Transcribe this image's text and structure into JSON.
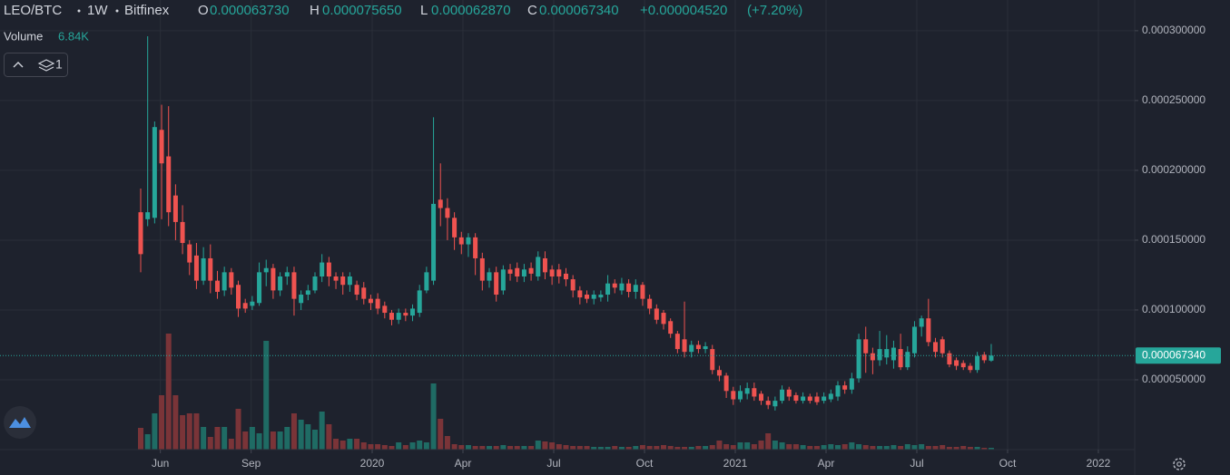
{
  "chart_data": {
    "type": "candlestick",
    "header": {
      "symbol": "LEO/BTC",
      "interval": "1W",
      "exchange": "Bitfinex",
      "open_key": "O",
      "open": "0.000063730",
      "high_key": "H",
      "high": "0.000075650",
      "low_key": "L",
      "low": "0.000062870",
      "close_key": "C",
      "close": "0.000067340",
      "change": "+0.000004520",
      "change_pct": "(+7.20%)",
      "volume_name": "Volume",
      "volume_value": "6.84K",
      "indicator_count": 1
    },
    "last_price_label": "0.000067340",
    "up_color": "#26a69a",
    "down_color": "#ef5350",
    "up_volume_color": "#1f6b64",
    "down_volume_color": "#7a3438",
    "grid": true,
    "xlim": [
      2018.975,
      2022.1
    ],
    "ylim": [
      0,
      0.000322
    ],
    "xticks": [
      {
        "value": 2019.4167,
        "label": "Jun"
      },
      {
        "value": 2019.6667,
        "label": "Sep"
      },
      2020,
      {
        "value": 2020.25,
        "label": "Apr"
      },
      {
        "value": 2020.5,
        "label": "Jul"
      },
      {
        "value": 2020.75,
        "label": "Oct"
      },
      2021,
      {
        "value": 2021.25,
        "label": "Apr"
      },
      {
        "value": 2021.5,
        "label": "Jul"
      },
      {
        "value": 2021.75,
        "label": "Oct"
      },
      2022
    ],
    "yticks": [
      {
        "value": 5e-05,
        "label": "0.000050000"
      },
      {
        "value": 0.0001,
        "label": "0.000100000"
      },
      {
        "value": 0.00015,
        "label": "0.000150000"
      },
      {
        "value": 0.0002,
        "label": "0.000200000"
      },
      {
        "value": 0.00025,
        "label": "0.000250000"
      },
      {
        "value": 0.0003,
        "label": "0.000300000"
      }
    ],
    "x": [
      2019.3625,
      2019.3817,
      2019.4009,
      2019.4201,
      2019.4393,
      2019.4585,
      2019.4777,
      2019.4969,
      2019.5161,
      2019.5353,
      2019.5545,
      2019.5737,
      2019.5929,
      2019.6121,
      2019.6313,
      2019.6505,
      2019.6697,
      2019.6889,
      2019.7081,
      2019.7273,
      2019.7465,
      2019.7657,
      2019.7849,
      2019.8041,
      2019.8233,
      2019.8425,
      2019.8617,
      2019.8809,
      2019.9001,
      2019.9193,
      2019.9385,
      2019.9577,
      2019.9769,
      2019.9961,
      2020.0153,
      2020.0345,
      2020.0537,
      2020.0729,
      2020.0921,
      2020.1113,
      2020.1305,
      2020.1497,
      2020.1689,
      2020.1881,
      2020.2073,
      2020.2265,
      2020.2457,
      2020.2649,
      2020.2841,
      2020.3033,
      2020.3225,
      2020.3417,
      2020.3609,
      2020.3801,
      2020.3993,
      2020.4185,
      2020.4377,
      2020.4569,
      2020.4761,
      2020.4953,
      2020.5145,
      2020.5337,
      2020.5529,
      2020.5721,
      2020.5913,
      2020.6105,
      2020.6297,
      2020.6489,
      2020.6681,
      2020.6873,
      2020.7065,
      2020.7257,
      2020.7449,
      2020.7641,
      2020.7833,
      2020.8025,
      2020.8217,
      2020.8409,
      2020.8601,
      2020.8793,
      2020.8985,
      2020.9177,
      2020.9369,
      2020.9561,
      2020.9753,
      2020.9945,
      2021.0137,
      2021.0329,
      2021.0521,
      2021.0713,
      2021.0905,
      2021.1097,
      2021.1289,
      2021.1481,
      2021.1673,
      2021.1865,
      2021.2057,
      2021.2249,
      2021.2441,
      2021.2633,
      2021.2825,
      2021.3017,
      2021.3209,
      2021.3401,
      2021.3593,
      2021.3785,
      2021.3977,
      2021.4169,
      2021.4361,
      2021.4553,
      2021.4745,
      2021.4937,
      2021.5129,
      2021.5321,
      2021.5513,
      2021.5705,
      2021.5897,
      2021.6089,
      2021.6281,
      2021.6473,
      2021.6665,
      2021.6857,
      2021.7049
    ],
    "open": [
      0.00017,
      0.000165,
      0.000166,
      0.000229,
      0.00021,
      0.000182,
      0.000163,
      0.000147,
      0.000139,
      0.000121,
      0.000137,
      0.000121,
      0.000114,
      0.000127,
      0.000118,
      0.000105,
      0.000103,
      0.000105,
      0.000127,
      0.00013,
      0.000114,
      0.000124,
      0.000127,
      0.000105,
      0.000111,
      0.000114,
      0.000124,
      0.000134,
      0.000124,
      0.000124,
      0.000118,
      0.000118,
      0.000116,
      0.000108,
      0.000108,
      0.000103,
      9.8e-05,
      9.3e-05,
      9.8e-05,
      9.6e-05,
      9.8e-05,
      0.000114,
      0.000121,
      0.000179,
      0.000173,
      0.000166,
      0.000152,
      0.000147,
      0.000152,
      0.000137,
      0.000121,
      0.000127,
      0.000114,
      0.000129,
      0.00013,
      0.000124,
      0.00013,
      0.000124,
      0.000137,
      0.000129,
      0.000129,
      0.000126,
      0.000122,
      0.000114,
      0.000111,
      0.000108,
      0.000109,
      0.000111,
      0.000119,
      0.000114,
      0.000119,
      0.000113,
      0.000118,
      0.000108,
      0.000101,
      9.8e-05,
      9.2e-05,
      8.3e-05,
      7.9e-05,
      7e-05,
      7.5e-05,
      7.2e-05,
      7.2e-05,
      5.7e-05,
      5.3e-05,
      4.2e-05,
      3.6e-05,
      4e-05,
      4.4e-05,
      4e-05,
      3.5e-05,
      3.1e-05,
      3.5e-05,
      4.3e-05,
      3.9e-05,
      3.5e-05,
      3.8e-05,
      3.8e-05,
      3.5e-05,
      3.6e-05,
      3.8e-05,
      4.6e-05,
      4.3e-05,
      5.1e-05,
      7.9e-05,
      6.9e-05,
      6.4e-05,
      6.6e-05,
      6.4e-05,
      7.2e-05,
      5.9e-05,
      6.9e-05,
      8.8e-05,
      9.4e-05,
      7.7e-05,
      7.9e-05,
      6.9e-05,
      6.4e-05,
      6.2e-05,
      6e-05,
      5.7e-05,
      6.8e-05,
      6.373e-05
    ],
    "high": [
      0.000187,
      0.000296,
      0.000235,
      0.000247,
      0.000246,
      0.00019,
      0.000175,
      0.00015,
      0.000148,
      0.000145,
      0.000147,
      0.000128,
      0.000131,
      0.00013,
      0.000121,
      0.000108,
      0.00011,
      0.000134,
      0.000136,
      0.000133,
      0.000127,
      0.000131,
      0.000131,
      0.000114,
      0.000118,
      0.000127,
      0.00014,
      0.000138,
      0.000127,
      0.000127,
      0.000127,
      0.000121,
      0.00012,
      0.000111,
      0.000112,
      0.000106,
      0.0001,
      0.000101,
      0.000101,
      0.000104,
      0.000118,
      0.000131,
      0.000238,
      0.000205,
      0.00018,
      0.00017,
      0.000156,
      0.000155,
      0.000155,
      0.000141,
      0.00013,
      0.000131,
      0.000132,
      0.000133,
      0.000134,
      0.000133,
      0.000134,
      0.000142,
      0.000142,
      0.000132,
      0.000133,
      0.00013,
      0.000125,
      0.000117,
      0.000114,
      0.000114,
      0.000114,
      0.000125,
      0.000122,
      0.000123,
      0.000122,
      0.000122,
      0.00012,
      0.000111,
      0.000104,
      0.0001,
      9.4e-05,
      8.5e-05,
      0.000106,
      7.8e-05,
      7.8e-05,
      7.7e-05,
      7.5e-05,
      6e-05,
      5.5e-05,
      4.5e-05,
      4.6e-05,
      4.8e-05,
      4.8e-05,
      4.2e-05,
      3.8e-05,
      3.8e-05,
      4.6e-05,
      4.5e-05,
      4.1e-05,
      4.1e-05,
      4e-05,
      4.1e-05,
      4.1e-05,
      4.3e-05,
      4.9e-05,
      4.9e-05,
      5.5e-05,
      8.3e-05,
      8.8e-05,
      7.3e-05,
      8.5e-05,
      8.2e-05,
      7.8e-05,
      8.3e-05,
      7.4e-05,
      9.2e-05,
      9.6e-05,
      0.000108,
      8e-05,
      8.1e-05,
      7.1e-05,
      6.6e-05,
      6.4e-05,
      6.2e-05,
      7e-05,
      7e-05,
      7.565e-05
    ],
    "low": [
      0.000127,
      0.00016,
      0.000162,
      0.000165,
      0.00016,
      0.00015,
      0.00014,
      0.000125,
      0.000115,
      0.000118,
      0.000112,
      0.000108,
      0.00011,
      0.000111,
      9.5e-05,
      9.8e-05,
      0.0001,
      0.000103,
      0.000117,
      0.000108,
      0.00011,
      0.000118,
      9.6e-05,
      0.0001,
      0.000107,
      0.000112,
      0.00012,
      0.000117,
      0.000115,
      0.000111,
      0.000113,
      0.000107,
      0.000104,
      0.0001,
      9.7e-05,
      9.4e-05,
      8.9e-05,
      9e-05,
      9.2e-05,
      9.2e-05,
      9.5e-05,
      0.000112,
      0.000118,
      0.00016,
      0.00015,
      0.000143,
      0.00014,
      0.000138,
      0.000125,
      0.000114,
      0.000116,
      0.000106,
      0.000111,
      0.000121,
      0.00012,
      0.00012,
      0.000121,
      0.000121,
      0.000122,
      0.000118,
      0.000119,
      0.000117,
      0.000109,
      0.000104,
      0.000105,
      0.000104,
      0.000106,
      0.000106,
      0.000112,
      0.000111,
      0.000109,
      0.000108,
      0.000103,
      9.7e-05,
      9e-05,
      8.6e-05,
      8e-05,
      6.9e-05,
      6.6e-05,
      6.6e-05,
      6.9e-05,
      6.9e-05,
      5.4e-05,
      4.9e-05,
      3.7e-05,
      3.2e-05,
      3.4e-05,
      3.6e-05,
      3.5e-05,
      3.2e-05,
      2.9e-05,
      2.8e-05,
      3.3e-05,
      3.5e-05,
      3.3e-05,
      3.3e-05,
      3.3e-05,
      3.2e-05,
      3.3e-05,
      3.4e-05,
      3.5e-05,
      4e-05,
      4e-05,
      4.8e-05,
      5.5e-05,
      5.4e-05,
      6e-05,
      6.1e-05,
      5.8e-05,
      5.7e-05,
      5.7e-05,
      6.6e-05,
      8.1e-05,
      7.4e-05,
      6.6e-05,
      6.6e-05,
      5.9e-05,
      5.7e-05,
      5.7e-05,
      5.5e-05,
      5.5e-05,
      6.2e-05,
      6.287e-05
    ],
    "close": [
      0.00014,
      0.00017,
      0.000231,
      0.000205,
      0.00017,
      0.000163,
      0.000148,
      0.000134,
      0.000121,
      0.000137,
      0.000121,
      0.000113,
      0.000127,
      0.000116,
      0.000101,
      0.000101,
      0.000106,
      0.000127,
      0.00013,
      0.000114,
      0.000124,
      0.000127,
      0.000108,
      0.000111,
      0.000114,
      0.000124,
      0.000134,
      0.000124,
      0.000121,
      0.000118,
      0.000124,
      0.000111,
      0.000108,
      0.000105,
      0.000101,
      9.8e-05,
      9.3e-05,
      9.8e-05,
      9.6e-05,
      0.000101,
      0.000114,
      0.000127,
      0.000176,
      0.000173,
      0.000166,
      0.000152,
      0.000147,
      0.000152,
      0.000137,
      0.000121,
      0.000127,
      0.000111,
      0.000129,
      0.000126,
      0.000124,
      0.000129,
      0.000126,
      0.000138,
      0.000127,
      0.000124,
      0.000124,
      0.000122,
      0.000114,
      0.000109,
      0.000108,
      0.000111,
      0.000111,
      0.000119,
      0.000116,
      0.000119,
      0.000113,
      0.000118,
      0.000108,
      0.000101,
      9.3e-05,
      9e-05,
      8.3e-05,
      7.2e-05,
      7e-05,
      7.5e-05,
      7.2e-05,
      7.4e-05,
      5.7e-05,
      5.3e-05,
      4.2e-05,
      3.6e-05,
      4.2e-05,
      4.4e-05,
      3.8e-05,
      3.5e-05,
      3.2e-05,
      3.5e-05,
      4.3e-05,
      3.8e-05,
      3.5e-05,
      3.8e-05,
      3.5e-05,
      3.4e-05,
      3.8e-05,
      4e-05,
      4.6e-05,
      4.3e-05,
      5.1e-05,
      7.9e-05,
      6.9e-05,
      6.4e-05,
      7.2e-05,
      7.2e-05,
      7.3e-05,
      5.9e-05,
      7e-05,
      8.8e-05,
      9.4e-05,
      7.7e-05,
      7e-05,
      6.9e-05,
      6.1e-05,
      6e-05,
      5.9e-05,
      5.7e-05,
      6.7e-05,
      6.4e-05,
      6.734e-05
    ],
    "volume": [
      81600,
      57800,
      136000,
      204000,
      435200,
      204000,
      129200,
      136000,
      136000,
      85000,
      47600,
      85000,
      85000,
      40800,
      153000,
      68000,
      85000,
      61200,
      408000,
      68000,
      68000,
      85000,
      136000,
      112200,
      95200,
      74800,
      142800,
      95200,
      40800,
      34000,
      40800,
      40800,
      27200,
      20400,
      20400,
      17000,
      13600,
      27200,
      17000,
      27200,
      34000,
      27200,
      248200,
      115600,
      51000,
      20400,
      17000,
      17000,
      13600,
      13600,
      13600,
      13600,
      17000,
      13600,
      13600,
      13600,
      13600,
      34000,
      30600,
      27200,
      20400,
      17000,
      13600,
      13600,
      13600,
      10200,
      10200,
      10200,
      13600,
      10200,
      10200,
      13600,
      17000,
      13600,
      13600,
      17000,
      13600,
      10200,
      10200,
      10200,
      13600,
      13600,
      17000,
      34000,
      20400,
      17000,
      27200,
      27200,
      20400,
      34000,
      61200,
      34000,
      27200,
      20400,
      20400,
      17000,
      13600,
      13600,
      17000,
      20400,
      17000,
      20400,
      27200,
      20400,
      17000,
      13600,
      13600,
      13600,
      17000,
      13600,
      20400,
      17000,
      20400,
      13600,
      13600,
      17000,
      10200,
      10200,
      13600,
      10200,
      10200,
      6800,
      6840
    ]
  }
}
